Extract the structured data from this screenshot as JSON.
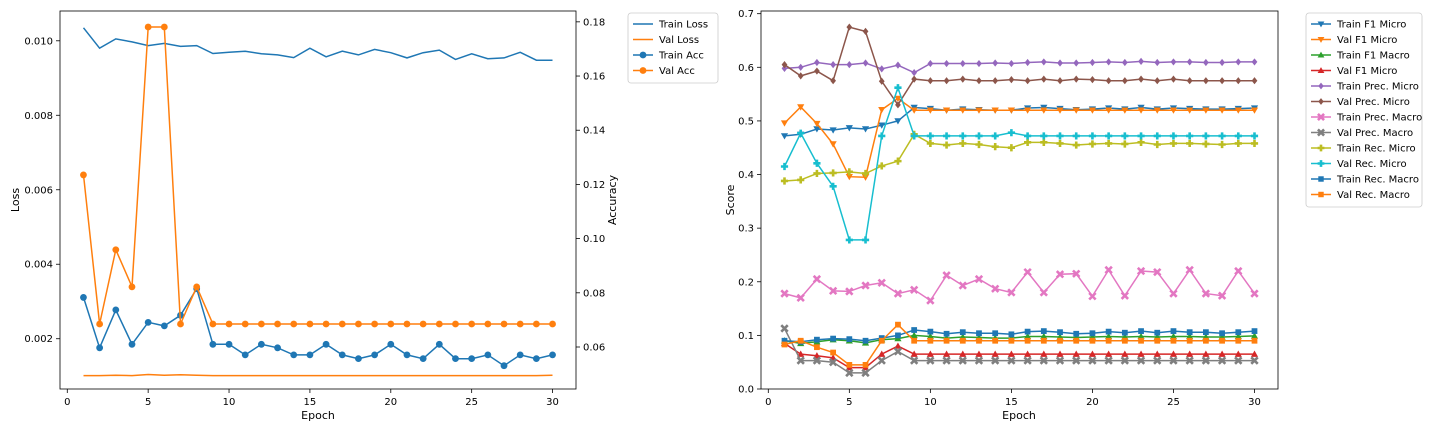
{
  "chart_data": [
    {
      "type": "line",
      "xlabel": "Epoch",
      "ylabel": "Loss",
      "ylabel_right": "Accuracy",
      "xlim": [
        -0.45,
        31.45
      ],
      "ylim": [
        0.00065,
        0.0108
      ],
      "ylim_right": [
        0.0445,
        0.184
      ],
      "x_ticks": [
        0,
        5,
        10,
        15,
        20,
        25,
        30
      ],
      "y_ticks": [
        0.002,
        0.004,
        0.006,
        0.008,
        0.01
      ],
      "y_tick_labels": [
        "0.002",
        "0.004",
        "0.006",
        "0.008",
        "0.010"
      ],
      "y_ticks_right": [
        0.06,
        0.08,
        0.1,
        0.12,
        0.14,
        0.16,
        0.18
      ],
      "y_tick_labels_right": [
        "0.06",
        "0.08",
        "0.10",
        "0.12",
        "0.14",
        "0.16",
        "0.18"
      ],
      "legend_position": "outside-top-right",
      "x": [
        1,
        2,
        3,
        4,
        5,
        6,
        7,
        8,
        9,
        10,
        11,
        12,
        13,
        14,
        15,
        16,
        17,
        18,
        19,
        20,
        21,
        22,
        23,
        24,
        25,
        26,
        27,
        28,
        29,
        30
      ],
      "series": [
        {
          "name": "Train Loss",
          "axis": "left",
          "color": "#1f77b4",
          "marker": "none",
          "values": [
            0.01035,
            0.0098,
            0.01005,
            0.00997,
            0.00987,
            0.00993,
            0.00985,
            0.00987,
            0.00966,
            0.00969,
            0.00972,
            0.00965,
            0.00962,
            0.00955,
            0.0098,
            0.00957,
            0.00972,
            0.00962,
            0.00977,
            0.00968,
            0.00954,
            0.00968,
            0.00975,
            0.0095,
            0.00965,
            0.00952,
            0.00954,
            0.00969,
            0.00948,
            0.00948
          ]
        },
        {
          "name": "Val Loss",
          "axis": "left",
          "color": "#ff7f0e",
          "marker": "none",
          "values": [
            0.00101,
            0.00101,
            0.00102,
            0.00101,
            0.00104,
            0.00102,
            0.00103,
            0.00102,
            0.00101,
            0.00101,
            0.00101,
            0.00101,
            0.00101,
            0.00101,
            0.00101,
            0.00101,
            0.00101,
            0.00101,
            0.00101,
            0.00101,
            0.00101,
            0.00101,
            0.00101,
            0.00101,
            0.00101,
            0.00101,
            0.00101,
            0.00101,
            0.00101,
            0.00102
          ]
        },
        {
          "name": "Train Acc",
          "axis": "right",
          "color": "#1f77b4",
          "marker": "circle",
          "values": [
            0.0783,
            0.0597,
            0.0737,
            0.061,
            0.0691,
            0.0678,
            0.0717,
            0.0815,
            0.061,
            0.061,
            0.0571,
            0.061,
            0.0597,
            0.0571,
            0.0571,
            0.061,
            0.0571,
            0.0557,
            0.0571,
            0.061,
            0.0571,
            0.0557,
            0.061,
            0.0557,
            0.0557,
            0.0571,
            0.0531,
            0.0571,
            0.0557,
            0.0571
          ]
        },
        {
          "name": "Val Acc",
          "axis": "right",
          "color": "#ff7f0e",
          "marker": "circle",
          "values": [
            0.1235,
            0.0685,
            0.0959,
            0.0822,
            0.1781,
            0.1781,
            0.0685,
            0.0822,
            0.0685,
            0.0685,
            0.0685,
            0.0685,
            0.0685,
            0.0685,
            0.0685,
            0.0685,
            0.0685,
            0.0685,
            0.0685,
            0.0685,
            0.0685,
            0.0685,
            0.0685,
            0.0685,
            0.0685,
            0.0685,
            0.0685,
            0.0685,
            0.0685,
            0.0685
          ]
        }
      ]
    },
    {
      "type": "line",
      "xlabel": "Epoch",
      "ylabel": "Score",
      "xlim": [
        -0.45,
        31.45
      ],
      "ylim": [
        0.0,
        0.705
      ],
      "x_ticks": [
        0,
        5,
        10,
        15,
        20,
        25,
        30
      ],
      "y_ticks": [
        0.0,
        0.1,
        0.2,
        0.3,
        0.4,
        0.5,
        0.6,
        0.7
      ],
      "y_tick_labels": [
        "0.0",
        "0.1",
        "0.2",
        "0.3",
        "0.4",
        "0.5",
        "0.6",
        "0.7"
      ],
      "legend_position": "outside-top-right",
      "x": [
        1,
        2,
        3,
        4,
        5,
        6,
        7,
        8,
        9,
        10,
        11,
        12,
        13,
        14,
        15,
        16,
        17,
        18,
        19,
        20,
        21,
        22,
        23,
        24,
        25,
        26,
        27,
        28,
        29,
        30
      ],
      "series": [
        {
          "name": "Train F1 Micro",
          "color": "#1f77b4",
          "marker": "tri_down",
          "values": [
            0.472,
            0.475,
            0.485,
            0.483,
            0.487,
            0.485,
            0.492,
            0.5,
            0.525,
            0.523,
            0.52,
            0.522,
            0.521,
            0.52,
            0.52,
            0.524,
            0.525,
            0.523,
            0.521,
            0.522,
            0.524,
            0.522,
            0.525,
            0.522,
            0.524,
            0.523,
            0.522,
            0.522,
            0.523,
            0.524
          ]
        },
        {
          "name": "Val F1 Micro",
          "color": "#ff7f0e",
          "marker": "tri_down",
          "values": [
            0.496,
            0.526,
            0.495,
            0.457,
            0.396,
            0.395,
            0.521,
            0.542,
            0.52,
            0.52,
            0.52,
            0.52,
            0.52,
            0.52,
            0.52,
            0.52,
            0.52,
            0.52,
            0.52,
            0.52,
            0.52,
            0.52,
            0.52,
            0.52,
            0.52,
            0.52,
            0.52,
            0.52,
            0.52,
            0.52
          ]
        },
        {
          "name": "Train F1 Macro",
          "color": "#2ca02c",
          "marker": "tri_up",
          "values": [
            0.09,
            0.085,
            0.088,
            0.092,
            0.09,
            0.086,
            0.092,
            0.094,
            0.1,
            0.098,
            0.095,
            0.097,
            0.096,
            0.095,
            0.095,
            0.098,
            0.098,
            0.097,
            0.096,
            0.097,
            0.098,
            0.097,
            0.098,
            0.097,
            0.098,
            0.098,
            0.097,
            0.097,
            0.098,
            0.099
          ]
        },
        {
          "name": "Val F1 Micro",
          "color": "#d62728",
          "marker": "tri_up",
          "values": [
            0.085,
            0.065,
            0.062,
            0.058,
            0.04,
            0.04,
            0.065,
            0.08,
            0.065,
            0.065,
            0.065,
            0.065,
            0.065,
            0.065,
            0.065,
            0.065,
            0.065,
            0.065,
            0.065,
            0.065,
            0.065,
            0.065,
            0.065,
            0.065,
            0.065,
            0.065,
            0.065,
            0.065,
            0.065,
            0.065
          ]
        },
        {
          "name": "Train Prec. Micro",
          "color": "#9467bd",
          "marker": "diamond",
          "values": [
            0.598,
            0.6,
            0.609,
            0.605,
            0.605,
            0.608,
            0.597,
            0.604,
            0.59,
            0.607,
            0.607,
            0.607,
            0.607,
            0.608,
            0.607,
            0.609,
            0.61,
            0.608,
            0.608,
            0.609,
            0.61,
            0.609,
            0.611,
            0.609,
            0.61,
            0.61,
            0.609,
            0.609,
            0.61,
            0.61
          ]
        },
        {
          "name": "Val Prec. Micro",
          "color": "#8c564b",
          "marker": "diamond",
          "values": [
            0.605,
            0.584,
            0.593,
            0.575,
            0.675,
            0.667,
            0.574,
            0.53,
            0.578,
            0.575,
            0.575,
            0.578,
            0.575,
            0.575,
            0.577,
            0.575,
            0.578,
            0.575,
            0.578,
            0.577,
            0.575,
            0.575,
            0.578,
            0.575,
            0.578,
            0.575,
            0.575,
            0.575,
            0.575,
            0.575
          ]
        },
        {
          "name": "Train Prec. Macro",
          "color": "#e377c2",
          "marker": "x",
          "values": [
            0.178,
            0.17,
            0.205,
            0.183,
            0.182,
            0.193,
            0.198,
            0.178,
            0.185,
            0.165,
            0.212,
            0.193,
            0.205,
            0.187,
            0.18,
            0.218,
            0.18,
            0.214,
            0.215,
            0.173,
            0.222,
            0.174,
            0.22,
            0.218,
            0.178,
            0.222,
            0.178,
            0.174,
            0.22,
            0.178
          ]
        },
        {
          "name": "Val Prec. Macro",
          "color": "#7f7f7f",
          "marker": "x",
          "values": [
            0.113,
            0.053,
            0.053,
            0.05,
            0.03,
            0.03,
            0.053,
            0.07,
            0.053,
            0.053,
            0.053,
            0.053,
            0.053,
            0.053,
            0.053,
            0.053,
            0.053,
            0.053,
            0.053,
            0.053,
            0.053,
            0.053,
            0.053,
            0.053,
            0.053,
            0.053,
            0.053,
            0.053,
            0.053,
            0.053
          ]
        },
        {
          "name": "Train Rec. Micro",
          "color": "#bcbd22",
          "marker": "plus",
          "values": [
            0.388,
            0.39,
            0.402,
            0.403,
            0.405,
            0.402,
            0.416,
            0.425,
            0.475,
            0.458,
            0.455,
            0.458,
            0.456,
            0.452,
            0.45,
            0.46,
            0.46,
            0.458,
            0.455,
            0.457,
            0.458,
            0.457,
            0.46,
            0.456,
            0.458,
            0.458,
            0.457,
            0.456,
            0.458,
            0.458
          ]
        },
        {
          "name": "Val Rec. Micro",
          "color": "#17becf",
          "marker": "plus",
          "values": [
            0.415,
            0.477,
            0.421,
            0.378,
            0.278,
            0.278,
            0.472,
            0.562,
            0.472,
            0.472,
            0.472,
            0.472,
            0.472,
            0.472,
            0.478,
            0.472,
            0.472,
            0.472,
            0.472,
            0.472,
            0.472,
            0.472,
            0.472,
            0.472,
            0.472,
            0.472,
            0.472,
            0.472,
            0.472,
            0.472
          ]
        },
        {
          "name": "Train Rec. Macro",
          "color": "#1f77b4",
          "marker": "square",
          "values": [
            0.09,
            0.088,
            0.092,
            0.094,
            0.093,
            0.09,
            0.095,
            0.1,
            0.11,
            0.107,
            0.103,
            0.106,
            0.104,
            0.104,
            0.102,
            0.107,
            0.108,
            0.106,
            0.103,
            0.104,
            0.107,
            0.105,
            0.108,
            0.105,
            0.108,
            0.106,
            0.106,
            0.104,
            0.106,
            0.108
          ]
        },
        {
          "name": "Val Rec. Macro",
          "color": "#ff7f0e",
          "marker": "square",
          "values": [
            0.083,
            0.09,
            0.078,
            0.068,
            0.045,
            0.045,
            0.09,
            0.12,
            0.09,
            0.09,
            0.09,
            0.09,
            0.09,
            0.09,
            0.09,
            0.09,
            0.09,
            0.09,
            0.09,
            0.09,
            0.09,
            0.09,
            0.09,
            0.09,
            0.09,
            0.09,
            0.09,
            0.09,
            0.09,
            0.09
          ]
        }
      ]
    }
  ]
}
